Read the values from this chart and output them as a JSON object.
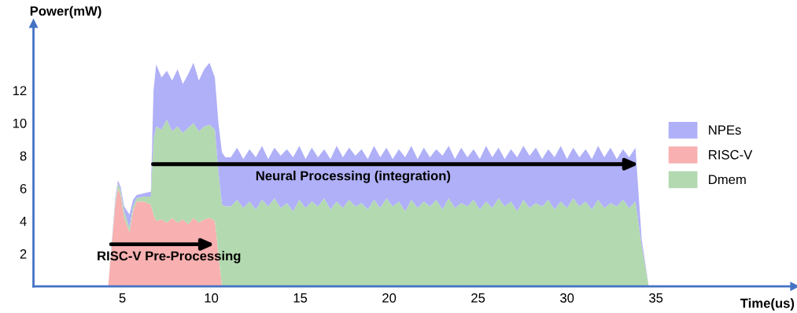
{
  "chart_data": {
    "type": "area",
    "stacked": true,
    "xlabel": "Time(us)",
    "ylabel": "Power(mW)",
    "xlim": [
      0,
      42.8
    ],
    "ylim": [
      0,
      16.1
    ],
    "xticks": [
      5,
      10,
      15,
      20,
      25,
      30,
      35
    ],
    "yticks": [
      2,
      4,
      6,
      8,
      10,
      12
    ],
    "grid": false,
    "legend": "right",
    "x": [
      0,
      4.2,
      4.4,
      4.6,
      4.75,
      4.9,
      5.1,
      5.4,
      5.6,
      5.8,
      6.2,
      6.6,
      6.75,
      6.9,
      7.2,
      7.5,
      7.8,
      8.1,
      8.4,
      8.7,
      9.0,
      9.3,
      9.6,
      9.9,
      10.2,
      10.4,
      10.6,
      10.8,
      11.1,
      11.45,
      11.8,
      12.15,
      12.5,
      12.85,
      13.2,
      13.55,
      13.9,
      14.25,
      14.6,
      14.95,
      15.3,
      15.65,
      16.0,
      16.35,
      16.7,
      17.05,
      17.4,
      17.75,
      18.1,
      18.45,
      18.8,
      19.15,
      19.5,
      19.85,
      20.2,
      20.55,
      20.9,
      21.25,
      21.6,
      21.95,
      22.3,
      22.65,
      23.0,
      23.35,
      23.7,
      24.05,
      24.4,
      24.75,
      25.1,
      25.45,
      25.8,
      26.15,
      26.5,
      26.85,
      27.2,
      27.55,
      27.9,
      28.25,
      28.6,
      28.95,
      29.3,
      29.65,
      30.0,
      30.35,
      30.7,
      31.05,
      31.4,
      31.75,
      32.1,
      32.45,
      32.8,
      33.15,
      33.5,
      33.85,
      34.2,
      34.6,
      40
    ],
    "series": [
      {
        "name": "RISC-V",
        "color": "#f8b0b0",
        "values": [
          0,
          0,
          2.5,
          5.0,
          6.0,
          5.6,
          4.2,
          3.3,
          4.6,
          5.2,
          5.2,
          5.0,
          4.4,
          4.0,
          4.1,
          3.9,
          4.2,
          3.9,
          4.1,
          3.8,
          4.2,
          3.9,
          4.1,
          4.2,
          4.0,
          2.0,
          0,
          0,
          0,
          0,
          0,
          0,
          0,
          0,
          0,
          0,
          0,
          0,
          0,
          0,
          0,
          0,
          0,
          0,
          0,
          0,
          0,
          0,
          0,
          0,
          0,
          0,
          0,
          0,
          0,
          0,
          0,
          0,
          0,
          0,
          0,
          0,
          0,
          0,
          0,
          0,
          0,
          0,
          0,
          0,
          0,
          0,
          0,
          0,
          0,
          0,
          0,
          0,
          0,
          0,
          0,
          0,
          0,
          0,
          0,
          0,
          0,
          0,
          0,
          0,
          0,
          0,
          0,
          0,
          0,
          0,
          0
        ]
      },
      {
        "name": "Dmem",
        "color": "#b3d9b0",
        "values": [
          0,
          0,
          0.1,
          0.2,
          0.3,
          0.3,
          0.4,
          0.3,
          0.3,
          0.2,
          0.3,
          0.5,
          4.6,
          5.8,
          5.5,
          6.3,
          5.3,
          5.9,
          5.3,
          5.9,
          5.8,
          5.6,
          5.7,
          5.7,
          5.6,
          5.0,
          5.0,
          4.9,
          4.9,
          5.3,
          4.8,
          5.2,
          4.7,
          5.3,
          4.9,
          5.4,
          4.8,
          5.1,
          4.6,
          5.3,
          4.8,
          5.2,
          4.9,
          5.4,
          4.7,
          5.2,
          4.8,
          5.3,
          4.9,
          5.1,
          4.7,
          5.3,
          4.8,
          5.4,
          4.9,
          5.2,
          4.6,
          5.3,
          4.8,
          5.2,
          4.9,
          5.3,
          4.7,
          5.4,
          4.8,
          5.1,
          4.9,
          5.3,
          4.7,
          5.2,
          4.8,
          5.4,
          4.9,
          5.2,
          4.6,
          5.3,
          4.8,
          5.1,
          4.9,
          5.3,
          4.7,
          5.2,
          4.8,
          5.4,
          4.9,
          5.2,
          4.7,
          5.3,
          4.8,
          5.1,
          4.9,
          5.3,
          4.8,
          5.2,
          2.5,
          0,
          0
        ]
      },
      {
        "name": "NPEs",
        "color": "#b0b0f8",
        "values": [
          0,
          0,
          0.1,
          0.2,
          0.2,
          0.2,
          0.3,
          0.8,
          0.4,
          0.2,
          0.2,
          0.3,
          3.0,
          3.8,
          3.2,
          3.0,
          3.1,
          3.5,
          3.0,
          3.3,
          3.7,
          3.1,
          3.5,
          3.8,
          3.2,
          3.0,
          3.2,
          3.0,
          3.0,
          3.2,
          3.0,
          3.2,
          3.2,
          3.3,
          2.9,
          3.1,
          3.2,
          3.3,
          3.3,
          3.3,
          3.0,
          3.3,
          3.0,
          3.0,
          3.1,
          3.4,
          3.1,
          3.2,
          3.1,
          3.3,
          3.1,
          3.3,
          3.1,
          3.1,
          2.9,
          3.2,
          3.3,
          3.3,
          3.0,
          3.3,
          3.0,
          3.1,
          3.3,
          3.2,
          3.0,
          3.4,
          3.0,
          3.1,
          3.1,
          3.4,
          3.1,
          3.1,
          2.9,
          3.2,
          3.3,
          3.3,
          3.2,
          3.4,
          2.9,
          3.1,
          3.2,
          3.4,
          3.0,
          3.1,
          3.0,
          3.2,
          3.1,
          3.3,
          3.1,
          3.4,
          2.9,
          3.1,
          3.1,
          3.3,
          0.4,
          0,
          0
        ]
      }
    ],
    "annotations": [
      "Neural Processing (integration)",
      "RISC-V Pre-Processing"
    ]
  }
}
